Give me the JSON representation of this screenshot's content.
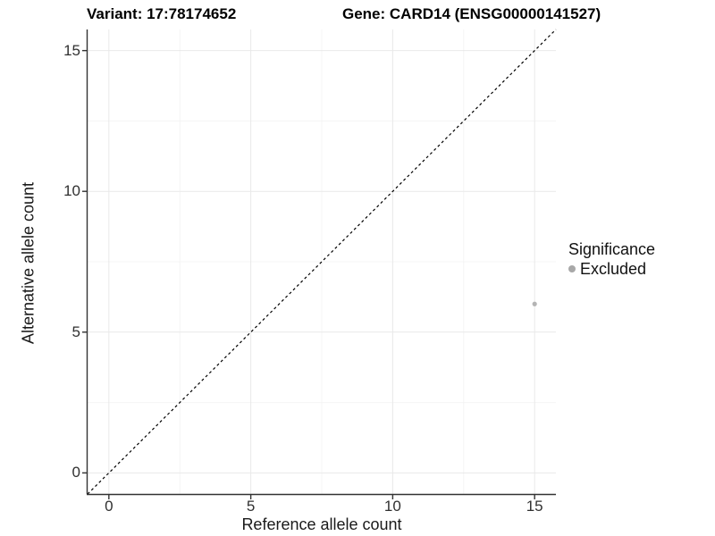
{
  "titles": {
    "left": "Variant: 17:78174652",
    "right": "Gene: CARD14 (ENSG00000141527)"
  },
  "chart_data": {
    "type": "scatter",
    "title": "Variant: 17:78174652   Gene: CARD14 (ENSG00000141527)",
    "xlabel": "Reference allele count",
    "ylabel": "Alternative allele count",
    "xlim": [
      -0.75,
      15.75
    ],
    "ylim": [
      -0.75,
      15.75
    ],
    "x_ticks": [
      0,
      5,
      10,
      15
    ],
    "y_ticks": [
      0,
      5,
      10,
      15
    ],
    "x_minor_ticks": [
      2.5,
      7.5,
      12.5
    ],
    "y_minor_ticks": [
      2.5,
      7.5,
      12.5
    ],
    "grid": "major+minor",
    "legend_position": "right",
    "series": [
      {
        "name": "Excluded",
        "points": [
          {
            "x": 15,
            "y": 6
          }
        ],
        "color": "#b4b4b4"
      }
    ],
    "reference_line": {
      "kind": "identity y=x",
      "style": "dashed",
      "color": "#000000"
    },
    "legend": {
      "title": "Significance",
      "items": [
        {
          "label": "Excluded",
          "color": "#a8a8a8"
        }
      ]
    },
    "colors": {
      "background": "#ffffff",
      "grid_major": "#e9e9e9",
      "grid_minor": "#f4f4f4",
      "axis_line": "#333333",
      "tick_mark": "#333333",
      "tick_text": "#303030"
    }
  }
}
